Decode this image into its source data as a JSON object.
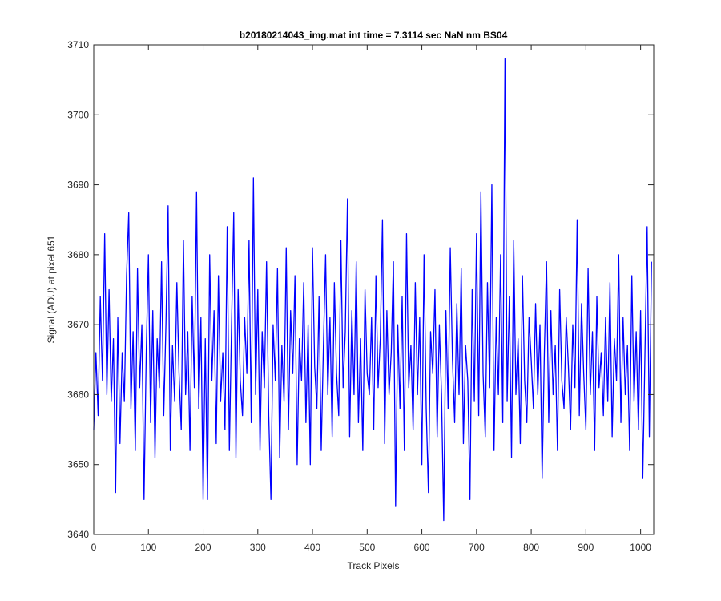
{
  "chart_data": {
    "type": "line",
    "title": "b20180214043_img.mat int time = 7.3114 sec  NaN nm BS04",
    "xlabel": "Track Pixels",
    "ylabel": "Signal (ADU) at pixel 651",
    "color": "#0000ff",
    "xlim": [
      0,
      1024
    ],
    "ylim": [
      3640,
      3710
    ],
    "xticks": [
      0,
      100,
      200,
      300,
      400,
      500,
      600,
      700,
      800,
      900,
      1000
    ],
    "yticks": [
      3640,
      3650,
      3660,
      3670,
      3680,
      3690,
      3700,
      3710
    ],
    "x": [
      0,
      4,
      8,
      12,
      16,
      20,
      24,
      28,
      32,
      36,
      40,
      44,
      48,
      52,
      56,
      60,
      64,
      68,
      72,
      76,
      80,
      84,
      88,
      92,
      96,
      100,
      104,
      108,
      112,
      116,
      120,
      124,
      128,
      132,
      136,
      140,
      144,
      148,
      152,
      156,
      160,
      164,
      168,
      172,
      176,
      180,
      184,
      188,
      192,
      196,
      200,
      204,
      208,
      212,
      216,
      220,
      224,
      228,
      232,
      236,
      240,
      244,
      248,
      252,
      256,
      260,
      264,
      268,
      272,
      276,
      280,
      284,
      288,
      292,
      296,
      300,
      304,
      308,
      312,
      316,
      320,
      324,
      328,
      332,
      336,
      340,
      344,
      348,
      352,
      356,
      360,
      364,
      368,
      372,
      376,
      380,
      384,
      388,
      392,
      396,
      400,
      404,
      408,
      412,
      416,
      420,
      424,
      428,
      432,
      436,
      440,
      444,
      448,
      452,
      456,
      460,
      464,
      468,
      472,
      476,
      480,
      484,
      488,
      492,
      496,
      500,
      504,
      508,
      512,
      516,
      520,
      524,
      528,
      532,
      536,
      540,
      544,
      548,
      552,
      556,
      560,
      564,
      568,
      572,
      576,
      580,
      584,
      588,
      592,
      596,
      600,
      604,
      608,
      612,
      616,
      620,
      624,
      628,
      632,
      636,
      640,
      644,
      648,
      652,
      656,
      660,
      664,
      668,
      672,
      676,
      680,
      684,
      688,
      692,
      696,
      700,
      704,
      708,
      712,
      716,
      720,
      724,
      728,
      732,
      736,
      740,
      744,
      748,
      752,
      756,
      760,
      764,
      768,
      772,
      776,
      780,
      784,
      788,
      792,
      796,
      800,
      804,
      808,
      812,
      816,
      820,
      824,
      828,
      832,
      836,
      840,
      844,
      848,
      852,
      856,
      860,
      864,
      868,
      872,
      876,
      880,
      884,
      888,
      892,
      896,
      900,
      904,
      908,
      912,
      916,
      920,
      924,
      928,
      932,
      936,
      940,
      944,
      948,
      952,
      956,
      960,
      964,
      968,
      972,
      976,
      980,
      984,
      988,
      992,
      996,
      1000,
      1004,
      1008,
      1012,
      1016,
      1020
    ],
    "values": [
      3655,
      3666,
      3657,
      3674,
      3662,
      3683,
      3660,
      3675,
      3659,
      3668,
      3646,
      3671,
      3653,
      3666,
      3659,
      3677,
      3686,
      3658,
      3669,
      3652,
      3678,
      3661,
      3670,
      3645,
      3666,
      3680,
      3656,
      3672,
      3651,
      3668,
      3661,
      3679,
      3657,
      3670,
      3687,
      3652,
      3667,
      3659,
      3676,
      3663,
      3655,
      3682,
      3660,
      3669,
      3652,
      3674,
      3661,
      3689,
      3658,
      3671,
      3645,
      3668,
      3645,
      3680,
      3662,
      3672,
      3653,
      3677,
      3659,
      3666,
      3655,
      3684,
      3652,
      3670,
      3686,
      3651,
      3675,
      3662,
      3657,
      3671,
      3663,
      3682,
      3656,
      3691,
      3660,
      3675,
      3652,
      3669,
      3661,
      3679,
      3657,
      3645,
      3670,
      3662,
      3678,
      3651,
      3667,
      3659,
      3681,
      3655,
      3672,
      3663,
      3677,
      3650,
      3668,
      3662,
      3676,
      3656,
      3670,
      3650,
      3681,
      3664,
      3658,
      3674,
      3652,
      3667,
      3680,
      3660,
      3671,
      3654,
      3676,
      3663,
      3657,
      3682,
      3661,
      3669,
      3688,
      3654,
      3672,
      3660,
      3679,
      3656,
      3668,
      3652,
      3675,
      3663,
      3660,
      3671,
      3655,
      3677,
      3661,
      3668,
      3685,
      3653,
      3672,
      3660,
      3666,
      3679,
      3644,
      3670,
      3658,
      3674,
      3652,
      3683,
      3661,
      3667,
      3655,
      3676,
      3660,
      3671,
      3650,
      3680,
      3658,
      3646,
      3669,
      3663,
      3675,
      3654,
      3670,
      3660,
      3642,
      3672,
      3658,
      3681,
      3665,
      3656,
      3673,
      3660,
      3678,
      3653,
      3667,
      3662,
      3645,
      3675,
      3659,
      3683,
      3657,
      3689,
      3663,
      3654,
      3676,
      3661,
      3690,
      3652,
      3671,
      3660,
      3680,
      3656,
      3708,
      3659,
      3674,
      3651,
      3682,
      3660,
      3668,
      3653,
      3677,
      3662,
      3656,
      3671,
      3665,
      3658,
      3673,
      3660,
      3670,
      3648,
      3666,
      3679,
      3656,
      3672,
      3660,
      3667,
      3652,
      3675,
      3662,
      3658,
      3671,
      3664,
      3655,
      3670,
      3661,
      3685,
      3657,
      3673,
      3663,
      3655,
      3678,
      3660,
      3669,
      3652,
      3674,
      3661,
      3666,
      3657,
      3671,
      3659,
      3676,
      3654,
      3668,
      3662,
      3680,
      3656,
      3671,
      3660,
      3667,
      3652,
      3677,
      3659,
      3669,
      3655,
      3672,
      3648,
      3666,
      3684,
      3654,
      3679
    ]
  }
}
